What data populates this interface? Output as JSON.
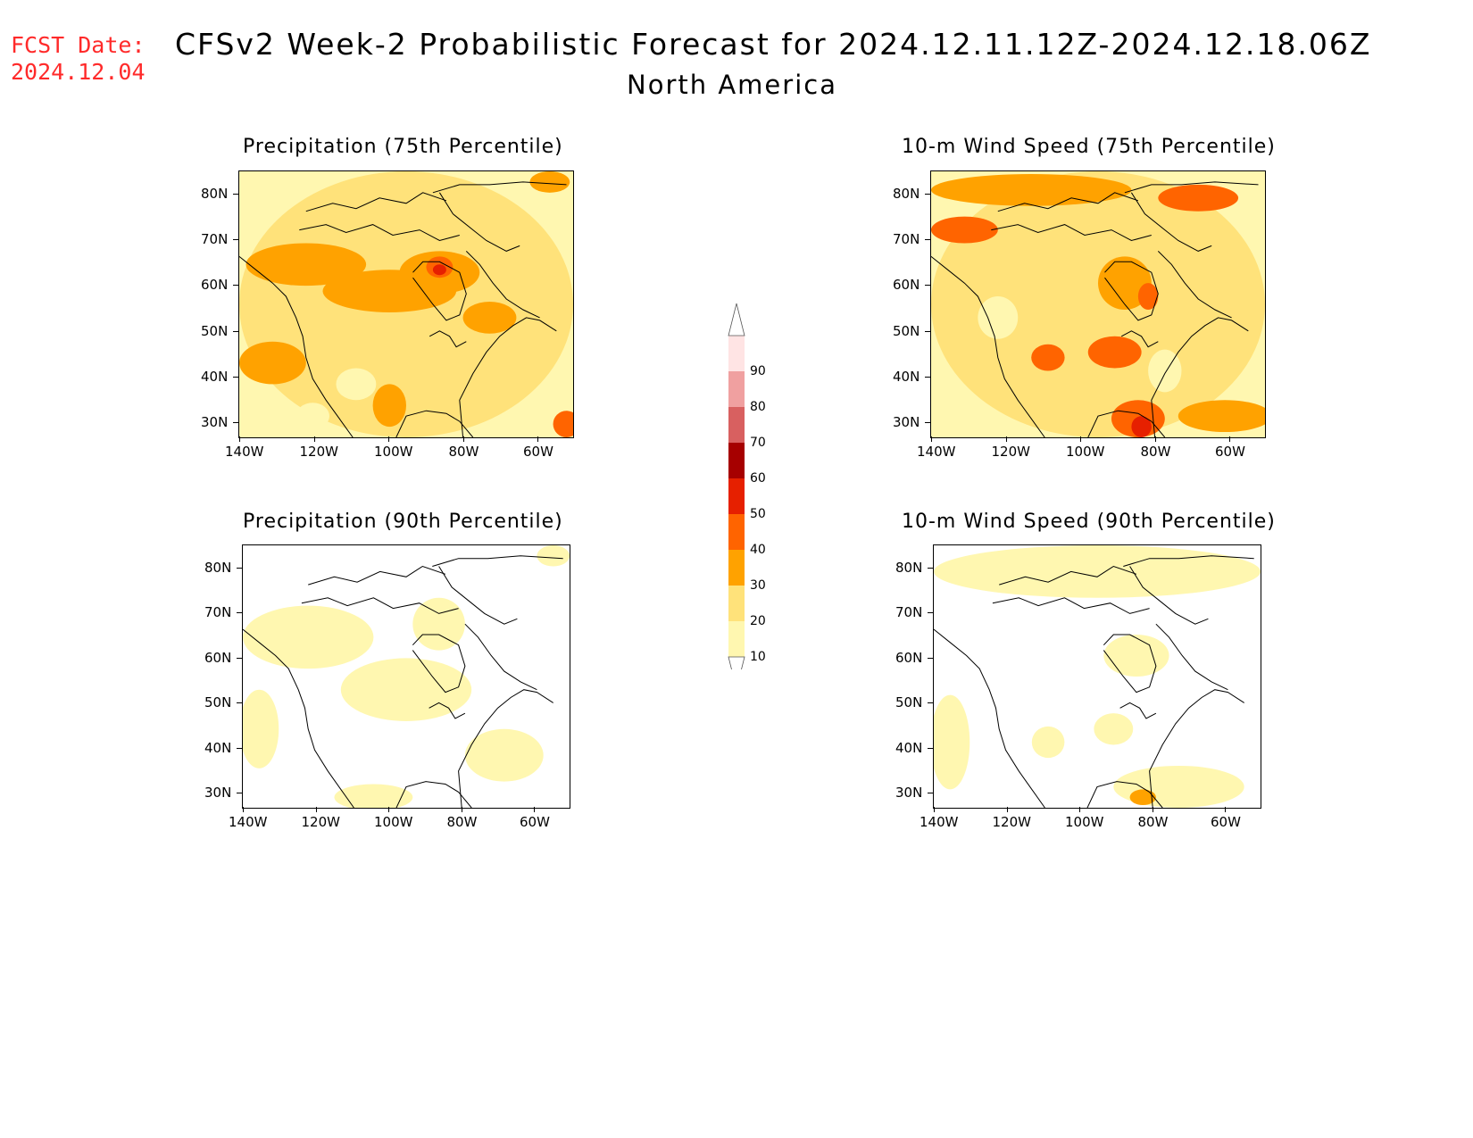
{
  "header": {
    "fcst_label": "FCST Date:",
    "fcst_date": "2024.12.04",
    "title": "CFSv2 Week-2 Probabilistic Forecast for 2024.12.11.12Z-2024.12.18.06Z",
    "subtitle": "North America"
  },
  "panels": [
    {
      "id": "precip75",
      "title": "Precipitation (75th Percentile)"
    },
    {
      "id": "wind75",
      "title": "10-m Wind Speed (75th Percentile)"
    },
    {
      "id": "precip90",
      "title": "Precipitation (90th Percentile)"
    },
    {
      "id": "wind90",
      "title": "10-m Wind Speed (90th Percentile)"
    }
  ],
  "axes": {
    "lat_labels": [
      "80N",
      "70N",
      "60N",
      "50N",
      "40N",
      "30N"
    ],
    "lon_labels": [
      "140W",
      "120W",
      "100W",
      "80W",
      "60W"
    ]
  },
  "colorbar": {
    "levels": [
      "10",
      "20",
      "30",
      "40",
      "50",
      "60",
      "70",
      "80",
      "90"
    ],
    "colors": [
      "#fff7b0",
      "#ffe27a",
      "#ffa200",
      "#ff6400",
      "#e62000",
      "#a60000",
      "#d86060",
      "#f0a0a0",
      "#ffe4e4"
    ]
  }
}
